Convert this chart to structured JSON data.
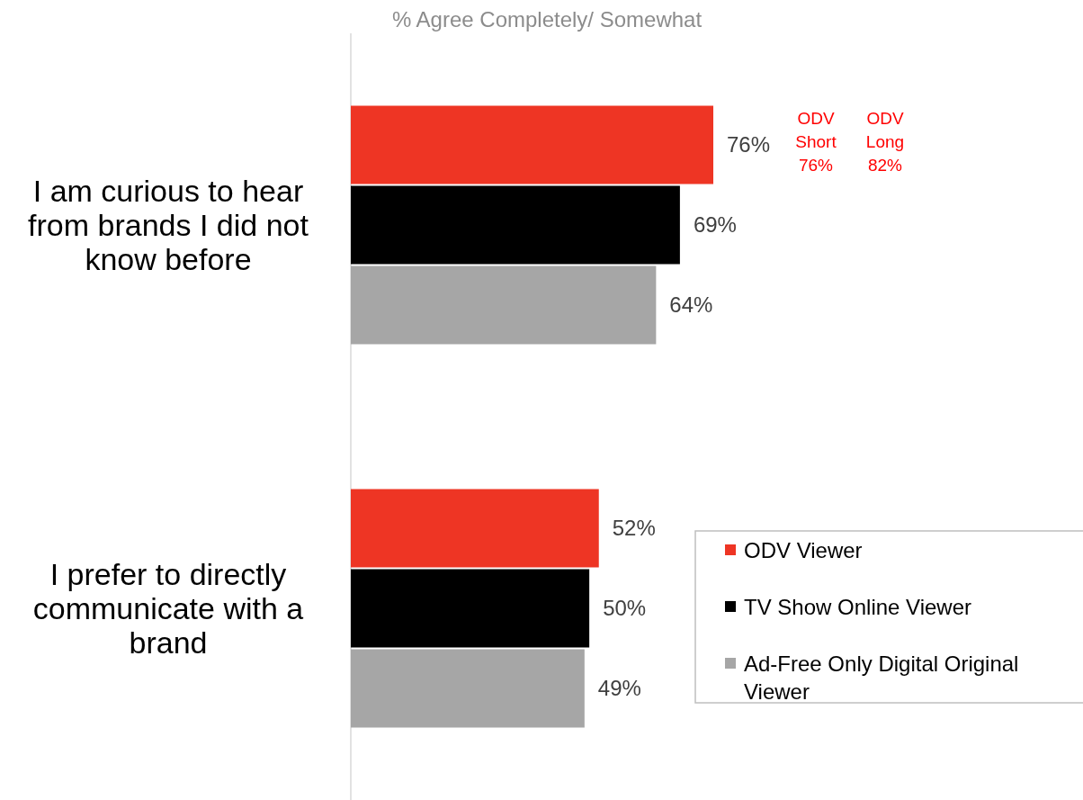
{
  "chart_data": {
    "type": "bar",
    "orientation": "horizontal",
    "xlabel": "% Agree Completely/ Somewhat",
    "categories": [
      "I am curious to hear from brands I did not know before",
      "I prefer to directly communicate with a brand"
    ],
    "series": [
      {
        "name": "ODV Viewer",
        "color": "#ee3524",
        "values": [
          76,
          52
        ],
        "value_labels": [
          "76%",
          "52%"
        ]
      },
      {
        "name": "TV Show Online Viewer",
        "color": "#000000",
        "values": [
          69,
          50
        ],
        "value_labels": [
          "69%",
          "50%"
        ]
      },
      {
        "name": "Ad-Free Only Digital Original Viewer",
        "color": "#a6a6a6",
        "values": [
          64,
          49
        ],
        "value_labels": [
          "64%",
          "49%"
        ]
      }
    ],
    "annotations": [
      "ODV Short 76%",
      "ODV Long 82%"
    ],
    "legend": "bottom right",
    "tick_labels": "y"
  }
}
